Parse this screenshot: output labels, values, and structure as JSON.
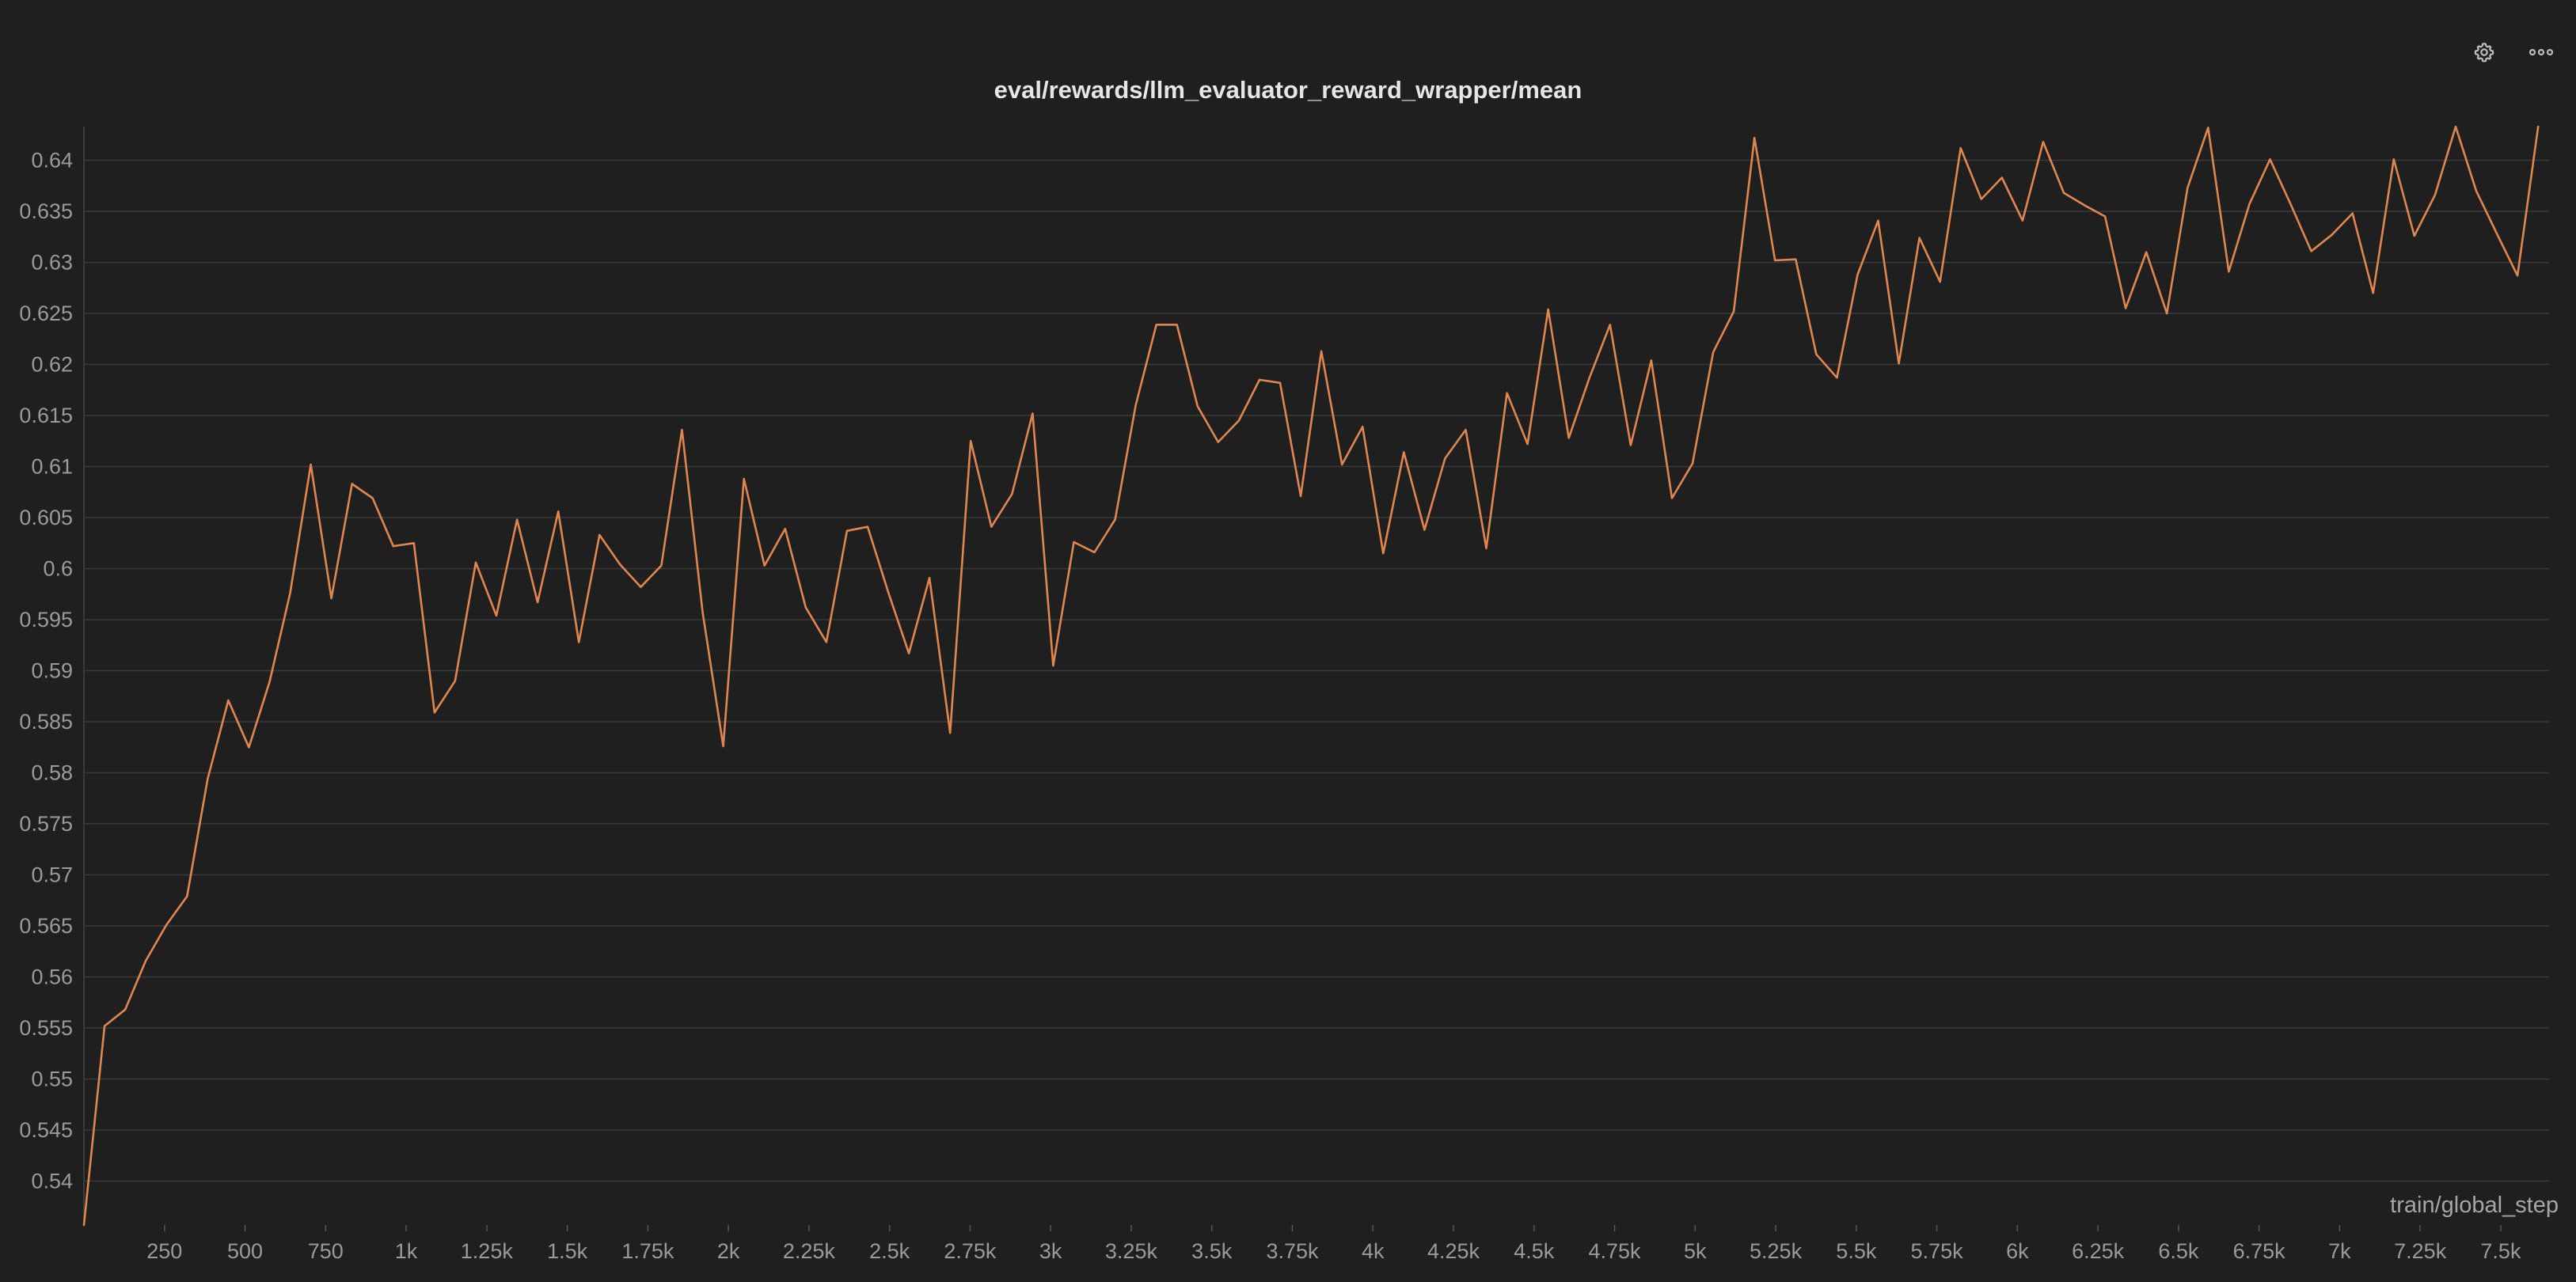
{
  "toolbar": {
    "settings_icon": "gear-icon",
    "more_icon": "more-horizontal-icon"
  },
  "colors": {
    "background": "#1f1f1f",
    "gridline": "#3a3a3a",
    "line": "#e0874f",
    "tick_text": "#9a9a9a",
    "title_text": "#e6e6e6"
  },
  "chart_data": {
    "type": "line",
    "title": "eval/rewards/llm_evaluator_reward_wrapper/mean",
    "xlabel": "train/global_step",
    "ylabel": "",
    "xlim": [
      0,
      7650
    ],
    "ylim": [
      0.5357,
      0.6433
    ],
    "grid": "horizontal",
    "x_ticks": [
      {
        "value": 250,
        "label": "250"
      },
      {
        "value": 500,
        "label": "500"
      },
      {
        "value": 750,
        "label": "750"
      },
      {
        "value": 1000,
        "label": "1k"
      },
      {
        "value": 1250,
        "label": "1.25k"
      },
      {
        "value": 1500,
        "label": "1.5k"
      },
      {
        "value": 1750,
        "label": "1.75k"
      },
      {
        "value": 2000,
        "label": "2k"
      },
      {
        "value": 2250,
        "label": "2.25k"
      },
      {
        "value": 2500,
        "label": "2.5k"
      },
      {
        "value": 2750,
        "label": "2.75k"
      },
      {
        "value": 3000,
        "label": "3k"
      },
      {
        "value": 3250,
        "label": "3.25k"
      },
      {
        "value": 3500,
        "label": "3.5k"
      },
      {
        "value": 3750,
        "label": "3.75k"
      },
      {
        "value": 4000,
        "label": "4k"
      },
      {
        "value": 4250,
        "label": "4.25k"
      },
      {
        "value": 4500,
        "label": "4.5k"
      },
      {
        "value": 4750,
        "label": "4.75k"
      },
      {
        "value": 5000,
        "label": "5k"
      },
      {
        "value": 5250,
        "label": "5.25k"
      },
      {
        "value": 5500,
        "label": "5.5k"
      },
      {
        "value": 5750,
        "label": "5.75k"
      },
      {
        "value": 6000,
        "label": "6k"
      },
      {
        "value": 6250,
        "label": "6.25k"
      },
      {
        "value": 6500,
        "label": "6.5k"
      },
      {
        "value": 6750,
        "label": "6.75k"
      },
      {
        "value": 7000,
        "label": "7k"
      },
      {
        "value": 7250,
        "label": "7.25k"
      },
      {
        "value": 7500,
        "label": "7.5k"
      }
    ],
    "y_ticks": [
      {
        "value": 0.54,
        "label": "0.54"
      },
      {
        "value": 0.545,
        "label": "0.545"
      },
      {
        "value": 0.55,
        "label": "0.55"
      },
      {
        "value": 0.555,
        "label": "0.555"
      },
      {
        "value": 0.56,
        "label": "0.56"
      },
      {
        "value": 0.565,
        "label": "0.565"
      },
      {
        "value": 0.57,
        "label": "0.57"
      },
      {
        "value": 0.575,
        "label": "0.575"
      },
      {
        "value": 0.58,
        "label": "0.58"
      },
      {
        "value": 0.585,
        "label": "0.585"
      },
      {
        "value": 0.59,
        "label": "0.59"
      },
      {
        "value": 0.595,
        "label": "0.595"
      },
      {
        "value": 0.6,
        "label": "0.6"
      },
      {
        "value": 0.605,
        "label": "0.605"
      },
      {
        "value": 0.61,
        "label": "0.61"
      },
      {
        "value": 0.615,
        "label": "0.615"
      },
      {
        "value": 0.62,
        "label": "0.62"
      },
      {
        "value": 0.625,
        "label": "0.625"
      },
      {
        "value": 0.63,
        "label": "0.63"
      },
      {
        "value": 0.635,
        "label": "0.635"
      },
      {
        "value": 0.64,
        "label": "0.64"
      }
    ],
    "series": [
      {
        "color": "#e0874f",
        "points": [
          [
            0,
            0.5357
          ],
          [
            64,
            0.5552
          ],
          [
            128,
            0.5568
          ],
          [
            192,
            0.5616
          ],
          [
            256,
            0.5651
          ],
          [
            320,
            0.5679
          ],
          [
            384,
            0.5794
          ],
          [
            448,
            0.5871
          ],
          [
            512,
            0.5825
          ],
          [
            576,
            0.5889
          ],
          [
            640,
            0.5976
          ],
          [
            704,
            0.6102
          ],
          [
            768,
            0.5971
          ],
          [
            832,
            0.6083
          ],
          [
            896,
            0.6069
          ],
          [
            960,
            0.6022
          ],
          [
            1024,
            0.6025
          ],
          [
            1088,
            0.5859
          ],
          [
            1152,
            0.589
          ],
          [
            1216,
            0.6006
          ],
          [
            1280,
            0.5954
          ],
          [
            1344,
            0.6048
          ],
          [
            1408,
            0.5967
          ],
          [
            1472,
            0.6056
          ],
          [
            1536,
            0.5928
          ],
          [
            1600,
            0.6033
          ],
          [
            1664,
            0.6004
          ],
          [
            1728,
            0.5982
          ],
          [
            1792,
            0.6003
          ],
          [
            1856,
            0.6136
          ],
          [
            1920,
            0.5957
          ],
          [
            1984,
            0.5826
          ],
          [
            2048,
            0.6088
          ],
          [
            2112,
            0.6003
          ],
          [
            2176,
            0.6039
          ],
          [
            2240,
            0.5962
          ],
          [
            2304,
            0.5928
          ],
          [
            2368,
            0.6037
          ],
          [
            2432,
            0.6041
          ],
          [
            2496,
            0.5977
          ],
          [
            2560,
            0.5917
          ],
          [
            2624,
            0.5991
          ],
          [
            2688,
            0.5839
          ],
          [
            2752,
            0.6125
          ],
          [
            2816,
            0.6041
          ],
          [
            2880,
            0.6073
          ],
          [
            2944,
            0.6152
          ],
          [
            3008,
            0.5905
          ],
          [
            3072,
            0.6026
          ],
          [
            3136,
            0.6016
          ],
          [
            3200,
            0.6048
          ],
          [
            3264,
            0.616
          ],
          [
            3328,
            0.6239
          ],
          [
            3392,
            0.6239
          ],
          [
            3456,
            0.6159
          ],
          [
            3520,
            0.6124
          ],
          [
            3584,
            0.6145
          ],
          [
            3648,
            0.6185
          ],
          [
            3712,
            0.6182
          ],
          [
            3776,
            0.6071
          ],
          [
            3840,
            0.6213
          ],
          [
            3904,
            0.6102
          ],
          [
            3968,
            0.6139
          ],
          [
            4032,
            0.6015
          ],
          [
            4096,
            0.6114
          ],
          [
            4160,
            0.6038
          ],
          [
            4224,
            0.6108
          ],
          [
            4288,
            0.6136
          ],
          [
            4352,
            0.602
          ],
          [
            4416,
            0.6172
          ],
          [
            4480,
            0.6122
          ],
          [
            4544,
            0.6254
          ],
          [
            4608,
            0.6128
          ],
          [
            4672,
            0.6187
          ],
          [
            4736,
            0.6239
          ],
          [
            4800,
            0.6121
          ],
          [
            4864,
            0.6204
          ],
          [
            4928,
            0.6069
          ],
          [
            4992,
            0.6103
          ],
          [
            5056,
            0.6212
          ],
          [
            5120,
            0.6252
          ],
          [
            5184,
            0.6422
          ],
          [
            5248,
            0.6302
          ],
          [
            5312,
            0.6303
          ],
          [
            5376,
            0.621
          ],
          [
            5440,
            0.6187
          ],
          [
            5504,
            0.6288
          ],
          [
            5568,
            0.6341
          ],
          [
            5632,
            0.6201
          ],
          [
            5696,
            0.6324
          ],
          [
            5760,
            0.6281
          ],
          [
            5824,
            0.6412
          ],
          [
            5888,
            0.6362
          ],
          [
            5952,
            0.6383
          ],
          [
            6016,
            0.6341
          ],
          [
            6080,
            0.6418
          ],
          [
            6144,
            0.6368
          ],
          [
            6208,
            0.6356
          ],
          [
            6272,
            0.6345
          ],
          [
            6336,
            0.6255
          ],
          [
            6400,
            0.631
          ],
          [
            6464,
            0.625
          ],
          [
            6528,
            0.6373
          ],
          [
            6592,
            0.6432
          ],
          [
            6656,
            0.6291
          ],
          [
            6720,
            0.6357
          ],
          [
            6784,
            0.6401
          ],
          [
            6848,
            0.6357
          ],
          [
            6912,
            0.6311
          ],
          [
            6976,
            0.6327
          ],
          [
            7040,
            0.6348
          ],
          [
            7104,
            0.627
          ],
          [
            7168,
            0.6401
          ],
          [
            7232,
            0.6326
          ],
          [
            7296,
            0.6366
          ],
          [
            7360,
            0.6433
          ],
          [
            7424,
            0.637
          ],
          [
            7488,
            0.6328
          ],
          [
            7552,
            0.6287
          ],
          [
            7616,
            0.6433
          ]
        ]
      }
    ]
  }
}
